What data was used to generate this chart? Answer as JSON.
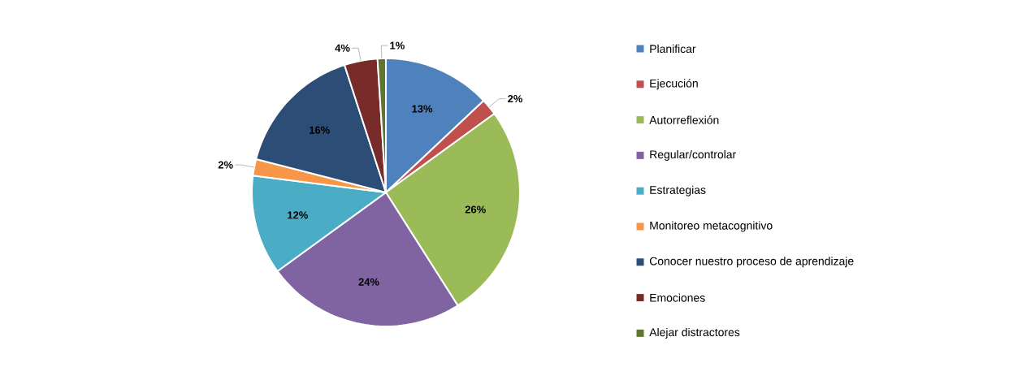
{
  "chart_data": {
    "type": "pie",
    "categories": [
      "Planificar",
      "Ejecución",
      "Autorreflexión",
      "Regular/controlar",
      "Estrategias",
      "Monitoreo metacognitivo",
      "Conocer nuestro proceso de aprendizaje",
      "Emociones",
      "Alejar distractores"
    ],
    "values": [
      13,
      2,
      26,
      24,
      12,
      2,
      16,
      4,
      1
    ],
    "value_labels": [
      "13%",
      "2%",
      "26%",
      "24%",
      "12%",
      "2%",
      "16%",
      "4%",
      "1%"
    ],
    "colors": [
      "#4f81bd",
      "#c0504d",
      "#9bbb59",
      "#8064a2",
      "#4bacc6",
      "#f79646",
      "#2c4d75",
      "#772c2a",
      "#5f7530"
    ],
    "legend": "right"
  }
}
